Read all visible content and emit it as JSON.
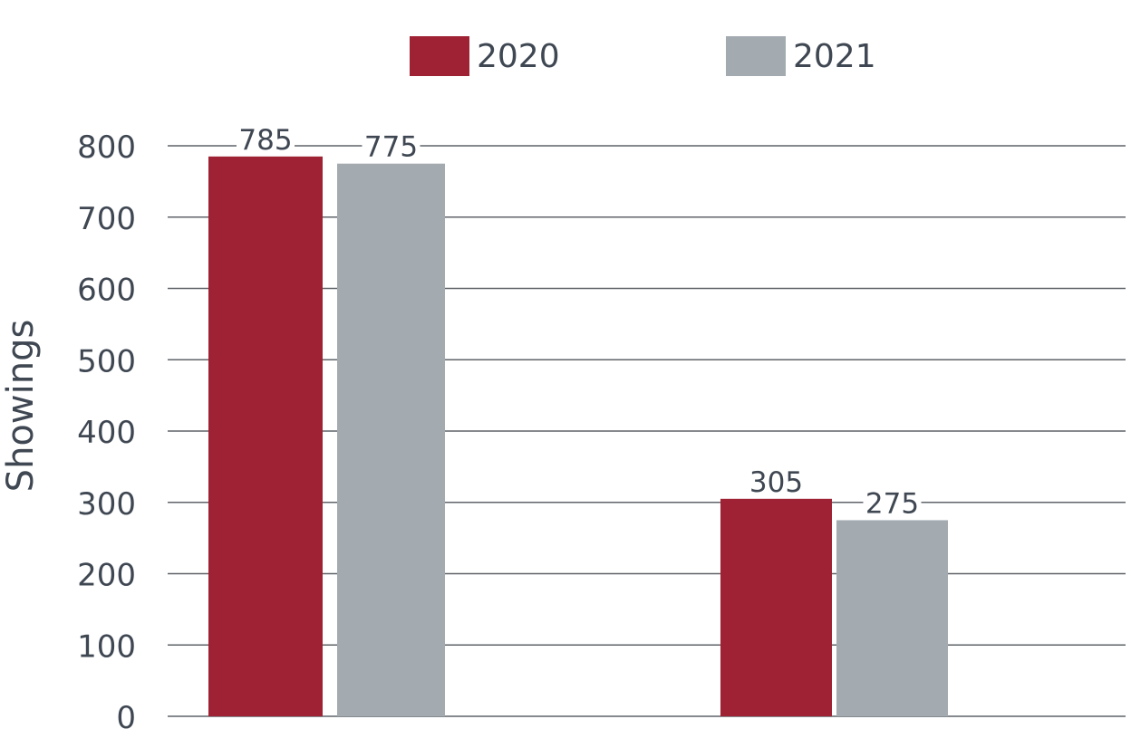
{
  "chart_data": {
    "type": "bar",
    "title": "",
    "xlabel": "",
    "ylabel": "Showings",
    "ylim": [
      0,
      800
    ],
    "yticks": [
      0,
      100,
      200,
      300,
      400,
      500,
      600,
      700,
      800
    ],
    "grid": true,
    "legend": "top-center",
    "categories": [
      "",
      ""
    ],
    "series": [
      {
        "name": "2020",
        "color": "#9e2233",
        "values": [
          785,
          305
        ],
        "labels": [
          "785",
          "305"
        ]
      },
      {
        "name": "2021",
        "color": "#a3abb1",
        "values": [
          775,
          275
        ],
        "labels": [
          "775",
          "275"
        ]
      }
    ],
    "gridline_color": "#5f6368"
  }
}
